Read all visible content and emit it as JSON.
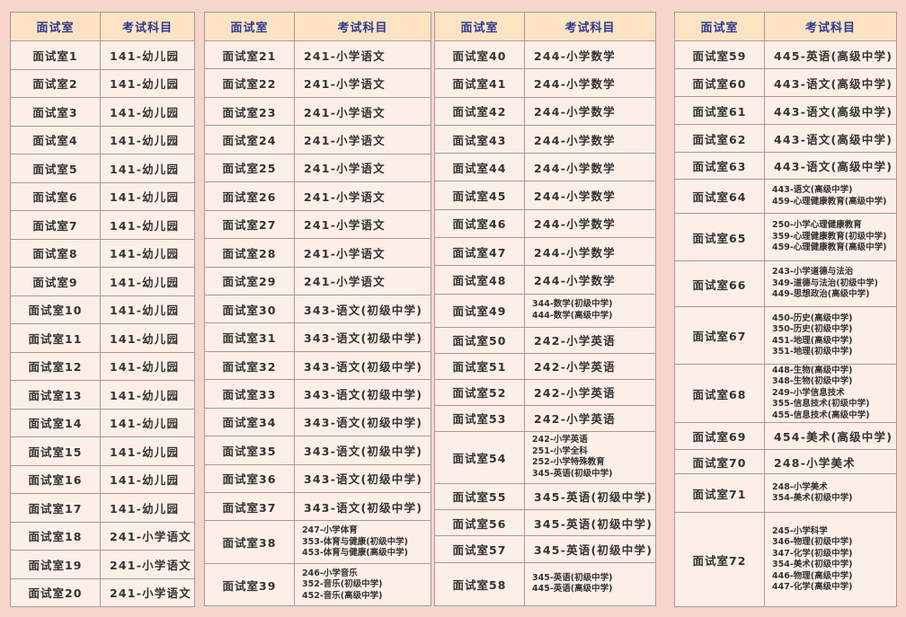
{
  "colors": {
    "background": "#f6d5cd",
    "header_bg": "#fde3c3",
    "header_text": "#2f3a8f",
    "cell_bg": "#fcefe8",
    "border": "#a89a92"
  },
  "header": {
    "room": "面试室",
    "subject": "考试科目"
  },
  "tables": [
    {
      "rows": [
        {
          "room": "面试室1",
          "subject": [
            "141-幼儿园"
          ]
        },
        {
          "room": "面试室2",
          "subject": [
            "141-幼儿园"
          ]
        },
        {
          "room": "面试室3",
          "subject": [
            "141-幼儿园"
          ]
        },
        {
          "room": "面试室4",
          "subject": [
            "141-幼儿园"
          ]
        },
        {
          "room": "面试室5",
          "subject": [
            "141-幼儿园"
          ]
        },
        {
          "room": "面试室6",
          "subject": [
            "141-幼儿园"
          ]
        },
        {
          "room": "面试室7",
          "subject": [
            "141-幼儿园"
          ]
        },
        {
          "room": "面试室8",
          "subject": [
            "141-幼儿园"
          ]
        },
        {
          "room": "面试室9",
          "subject": [
            "141-幼儿园"
          ]
        },
        {
          "room": "面试室10",
          "subject": [
            "141-幼儿园"
          ]
        },
        {
          "room": "面试室11",
          "subject": [
            "141-幼儿园"
          ]
        },
        {
          "room": "面试室12",
          "subject": [
            "141-幼儿园"
          ]
        },
        {
          "room": "面试室13",
          "subject": [
            "141-幼儿园"
          ]
        },
        {
          "room": "面试室14",
          "subject": [
            "141-幼儿园"
          ]
        },
        {
          "room": "面试室15",
          "subject": [
            "141-幼儿园"
          ]
        },
        {
          "room": "面试室16",
          "subject": [
            "141-幼儿园"
          ]
        },
        {
          "room": "面试室17",
          "subject": [
            "141-幼儿园"
          ]
        },
        {
          "room": "面试室18",
          "subject": [
            "241-小学语文"
          ]
        },
        {
          "room": "面试室19",
          "subject": [
            "241-小学语文"
          ]
        },
        {
          "room": "面试室20",
          "subject": [
            "241-小学语文"
          ]
        }
      ]
    },
    {
      "rows": [
        {
          "room": "面试室21",
          "subject": [
            "241-小学语文"
          ]
        },
        {
          "room": "面试室22",
          "subject": [
            "241-小学语文"
          ]
        },
        {
          "room": "面试室23",
          "subject": [
            "241-小学语文"
          ]
        },
        {
          "room": "面试室24",
          "subject": [
            "241-小学语文"
          ]
        },
        {
          "room": "面试室25",
          "subject": [
            "241-小学语文"
          ]
        },
        {
          "room": "面试室26",
          "subject": [
            "241-小学语文"
          ]
        },
        {
          "room": "面试室27",
          "subject": [
            "241-小学语文"
          ]
        },
        {
          "room": "面试室28",
          "subject": [
            "241-小学语文"
          ]
        },
        {
          "room": "面试室29",
          "subject": [
            "241-小学语文"
          ]
        },
        {
          "room": "面试室30",
          "subject": [
            "343-语文(初级中学)"
          ]
        },
        {
          "room": "面试室31",
          "subject": [
            "343-语文(初级中学)"
          ]
        },
        {
          "room": "面试室32",
          "subject": [
            "343-语文(初级中学)"
          ]
        },
        {
          "room": "面试室33",
          "subject": [
            "343-语文(初级中学)"
          ]
        },
        {
          "room": "面试室34",
          "subject": [
            "343-语文(初级中学)"
          ]
        },
        {
          "room": "面试室35",
          "subject": [
            "343-语文(初级中学)"
          ]
        },
        {
          "room": "面试室36",
          "subject": [
            "343-语文(初级中学)"
          ]
        },
        {
          "room": "面试室37",
          "subject": [
            "343-语文(初级中学)"
          ]
        },
        {
          "room": "面试室38",
          "subject": [
            "247-小学体育",
            "353-体育与健康(初级中学)",
            "453-体育与健康(高级中学)"
          ]
        },
        {
          "room": "面试室39",
          "subject": [
            "246-小学音乐",
            "352-音乐(初级中学)",
            "452-音乐(高级中学)"
          ]
        }
      ]
    },
    {
      "rows": [
        {
          "room": "面试室40",
          "subject": [
            "244-小学数学"
          ]
        },
        {
          "room": "面试室41",
          "subject": [
            "244-小学数学"
          ]
        },
        {
          "room": "面试室42",
          "subject": [
            "244-小学数学"
          ]
        },
        {
          "room": "面试室43",
          "subject": [
            "244-小学数学"
          ]
        },
        {
          "room": "面试室44",
          "subject": [
            "244-小学数学"
          ]
        },
        {
          "room": "面试室45",
          "subject": [
            "244-小学数学"
          ]
        },
        {
          "room": "面试室46",
          "subject": [
            "244-小学数学"
          ]
        },
        {
          "room": "面试室47",
          "subject": [
            "244-小学数学"
          ]
        },
        {
          "room": "面试室48",
          "subject": [
            "244-小学数学"
          ]
        },
        {
          "room": "面试室49",
          "subject": [
            "344-数学(初级中学)",
            "444-数学(高级中学)"
          ]
        },
        {
          "room": "面试室50",
          "subject": [
            "242-小学英语"
          ]
        },
        {
          "room": "面试室51",
          "subject": [
            "242-小学英语"
          ]
        },
        {
          "room": "面试室52",
          "subject": [
            "242-小学英语"
          ]
        },
        {
          "room": "面试室53",
          "subject": [
            "242-小学英语"
          ]
        },
        {
          "room": "面试室54",
          "subject": [
            "242-小学英语",
            "251-小学全科",
            "252-小学特殊教育",
            "345-英语(初级中学)"
          ]
        },
        {
          "room": "面试室55",
          "subject": [
            "345-英语(初级中学)"
          ]
        },
        {
          "room": "面试室56",
          "subject": [
            "345-英语(初级中学)"
          ]
        },
        {
          "room": "面试室57",
          "subject": [
            "345-英语(初级中学)"
          ]
        },
        {
          "room": "面试室58",
          "subject": [
            "345-英语(初级中学)",
            "445-英语(高级中学)"
          ]
        }
      ]
    },
    {
      "rows": [
        {
          "room": "面试室59",
          "subject": [
            "445-英语(高级中学)"
          ]
        },
        {
          "room": "面试室60",
          "subject": [
            "443-语文(高级中学)"
          ]
        },
        {
          "room": "面试室61",
          "subject": [
            "443-语文(高级中学)"
          ]
        },
        {
          "room": "面试室62",
          "subject": [
            "443-语文(高级中学)"
          ]
        },
        {
          "room": "面试室63",
          "subject": [
            "443-语文(高级中学)"
          ]
        },
        {
          "room": "面试室64",
          "subject": [
            "443-语文(高级中学)",
            "459-心理健康教育(高级中学)"
          ]
        },
        {
          "room": "面试室65",
          "subject": [
            "250-小学心理健康教育",
            "359-心理健康教育(初级中学)",
            "459-心理健康教育(高级中学)"
          ]
        },
        {
          "room": "面试室66",
          "subject": [
            "243-小学道德与法治",
            "349-道德与法治(初级中学)",
            "449-思想政治(高级中学)"
          ]
        },
        {
          "room": "面试室67",
          "subject": [
            "450-历史(高级中学)",
            "350-历史(初级中学)",
            "451-地理(高级中学)",
            "351-地理(初级中学)"
          ]
        },
        {
          "room": "面试室68",
          "subject": [
            "448-生物(高级中学)",
            "348-生物(初级中学)",
            "249-小学信息技术",
            "355-信息技术(初级中学)",
            "455-信息技术(高级中学)"
          ]
        },
        {
          "room": "面试室69",
          "subject": [
            "454-美术(高级中学)"
          ]
        },
        {
          "room": "面试室70",
          "subject": [
            "248-小学美术"
          ]
        },
        {
          "room": "面试室71",
          "subject": [
            "248-小学美术",
            "354-美术(初级中学)"
          ]
        },
        {
          "room": "面试室72",
          "subject": [
            "245-小学科学",
            "346-物理(初级中学)",
            "347-化学(初级中学)",
            "354-美术(初级中学)",
            "446-物理(高级中学)",
            "447-化学(高级中学)"
          ]
        }
      ]
    }
  ]
}
